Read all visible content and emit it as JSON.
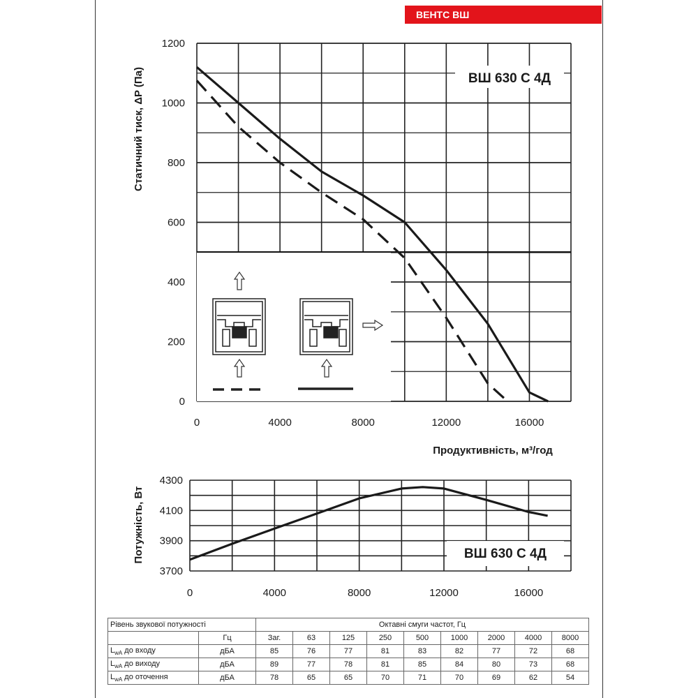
{
  "brand": "ВЕНТС ВШ",
  "chart_data": [
    {
      "type": "line",
      "model_label": "ВШ 630 С 4Д",
      "xlabel": "Продуктивність, м³/год",
      "ylabel": "Статичний тиск, ΔP (Па)",
      "xlim": [
        0,
        18000
      ],
      "ylim": [
        0,
        1200
      ],
      "x_ticks": [
        "0",
        "4000",
        "8000",
        "12000",
        "16000"
      ],
      "y_ticks": [
        "0",
        "200",
        "400",
        "600",
        "800",
        "1000",
        "1200"
      ],
      "grid": true,
      "series": [
        {
          "name": "solid",
          "style": "solid",
          "x": [
            0,
            2000,
            4000,
            6000,
            8000,
            10000,
            12000,
            14000,
            16000,
            16900
          ],
          "y": [
            1120,
            1000,
            880,
            770,
            690,
            600,
            440,
            260,
            30,
            0
          ]
        },
        {
          "name": "dashed",
          "style": "dashed",
          "x": [
            0,
            2000,
            4000,
            6000,
            8000,
            10000,
            12000,
            14000,
            14950
          ],
          "y": [
            1075,
            920,
            800,
            700,
            610,
            480,
            280,
            60,
            0
          ]
        }
      ],
      "legend": {
        "left_icon": "fan-section-inline-icon",
        "right_icon": "fan-section-side-outlet-icon"
      }
    },
    {
      "type": "line",
      "model_label": "ВШ 630 С 4Д",
      "ylabel": "Потужність, Вт",
      "xlim": [
        0,
        18000
      ],
      "ylim": [
        3700,
        4300
      ],
      "x_ticks": [
        "0",
        "4000",
        "8000",
        "12000",
        "16000"
      ],
      "y_ticks": [
        "3700",
        "3900",
        "4100",
        "4300"
      ],
      "grid": true,
      "series": [
        {
          "name": "power",
          "style": "solid",
          "x": [
            0,
            2000,
            4000,
            6000,
            8000,
            10000,
            11000,
            12000,
            14000,
            16000,
            16900
          ],
          "y": [
            3775,
            3880,
            3980,
            4080,
            4180,
            4245,
            4255,
            4245,
            4170,
            4090,
            4065
          ]
        }
      ]
    }
  ],
  "sound_table": {
    "title": "Рівень звукової потужності",
    "bands_title": "Октавні смуги частот, Гц",
    "hz_label": "Гц",
    "bands": [
      "Заг.",
      "63",
      "125",
      "250",
      "500",
      "1000",
      "2000",
      "4000",
      "8000"
    ],
    "rows": [
      {
        "label_sub": "wA",
        "label_text": " до входу",
        "unit": "дБА",
        "values": [
          "85",
          "76",
          "77",
          "81",
          "83",
          "82",
          "77",
          "72",
          "68"
        ]
      },
      {
        "label_sub": "wA",
        "label_text": " до виходу",
        "unit": "дБА",
        "values": [
          "89",
          "77",
          "78",
          "81",
          "85",
          "84",
          "80",
          "73",
          "68"
        ]
      },
      {
        "label_sub": "wA",
        "label_text": " до оточення",
        "unit": "дБА",
        "values": [
          "78",
          "65",
          "65",
          "70",
          "71",
          "70",
          "69",
          "62",
          "54"
        ]
      }
    ]
  }
}
